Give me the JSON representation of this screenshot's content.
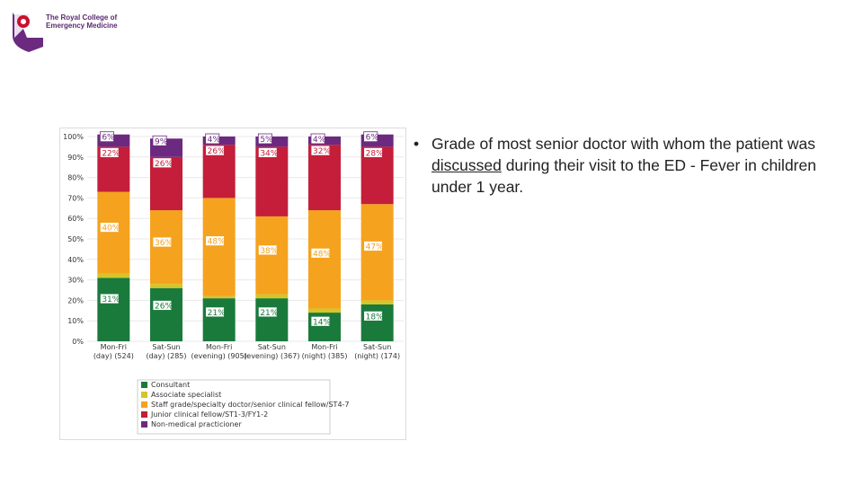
{
  "logo": {
    "line1": "The Royal College of",
    "line2": "Emergency Medicine",
    "colors": {
      "purple": "#6b2a7f",
      "red": "#c8102e"
    }
  },
  "bullet": {
    "marker": "•",
    "text_before": "Grade of most senior doctor with whom the patient was ",
    "text_underlined": "discussed",
    "text_after": " during their visit to the ED - Fever in children under 1 year."
  },
  "chart_data": {
    "type": "bar",
    "stacked": true,
    "percent": true,
    "yticks": [
      "0%",
      "10%",
      "20%",
      "30%",
      "40%",
      "50%",
      "60%",
      "70%",
      "80%",
      "90%",
      "100%"
    ],
    "ylim": [
      0,
      100
    ],
    "categories": [
      [
        "Mon-Fri",
        "(day) (524)"
      ],
      [
        "Sat-Sun",
        "(day) (285)"
      ],
      [
        "Mon-Fri",
        "(evening) (905)"
      ],
      [
        "Sat-Sun",
        "(evening) (367)"
      ],
      [
        "Mon-Fri",
        "(night) (385)"
      ],
      [
        "Sat-Sun",
        "(night) (174)"
      ]
    ],
    "series": [
      {
        "name": "Consultant",
        "color": "#1a7a3c",
        "values": [
          31,
          26,
          21,
          21,
          14,
          18
        ],
        "labels": [
          "31%",
          "26%",
          "21%",
          "21%",
          "14%",
          "18%"
        ]
      },
      {
        "name": "Associate specialist",
        "color": "#d4c52a",
        "values": [
          2,
          2,
          1,
          2,
          2,
          2
        ],
        "labels": [
          "2%",
          "2%",
          "1%",
          "2%",
          "2%",
          "2%"
        ]
      },
      {
        "name": "Staff grade/specialty doctor/senior clinical fellow/ST4-7",
        "color": "#f5a21e",
        "values": [
          40,
          36,
          48,
          38,
          48,
          47
        ],
        "labels": [
          "40%",
          "36%",
          "48%",
          "38%",
          "48%",
          "47%"
        ]
      },
      {
        "name": "Junior clinical fellow/ST1-3/FY1-2",
        "color": "#c41e3a",
        "values": [
          22,
          26,
          26,
          34,
          32,
          28
        ],
        "labels": [
          "22%",
          "26%",
          "26%",
          "34%",
          "32%",
          "28%"
        ]
      },
      {
        "name": "Non-medical practicioner",
        "color": "#6b2a7f",
        "values": [
          6,
          9,
          4,
          5,
          4,
          6
        ],
        "labels": [
          "6%",
          "9%",
          "4%",
          "5%",
          "4%",
          "6%"
        ]
      }
    ],
    "legend_position": "bottom"
  }
}
